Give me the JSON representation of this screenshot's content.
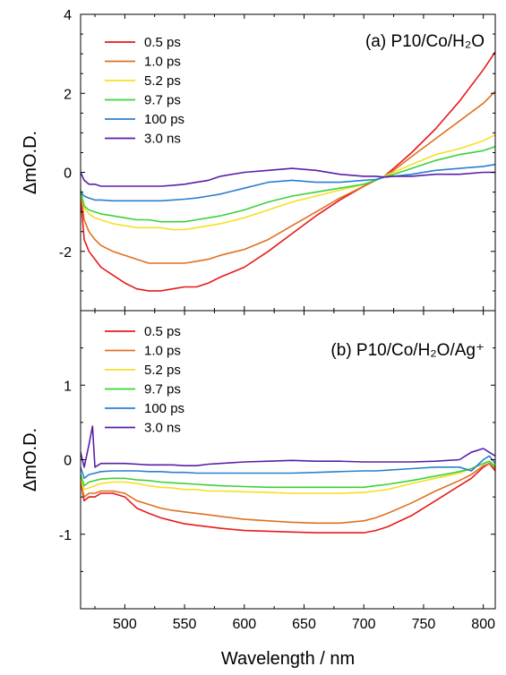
{
  "chart_data": [
    {
      "type": "line",
      "panel_label": "(a) P10/Co/H₂O",
      "ylabel": "ΔmO.D.",
      "xlabel": "",
      "xlim": [
        463,
        810
      ],
      "ylim": [
        -3.5,
        4
      ],
      "y_ticks": [
        -2,
        0,
        2,
        4
      ],
      "y_tick_labels": [
        "-2",
        "0",
        "2",
        "4"
      ],
      "x_ticks": [
        500,
        550,
        600,
        650,
        700,
        750,
        800
      ],
      "x_tick_labels": [],
      "legend_position": "top-left",
      "series": [
        {
          "name": "0.5 ps",
          "color": "#e8191c",
          "x": [
            463,
            466,
            470,
            475,
            480,
            490,
            500,
            510,
            520,
            530,
            540,
            550,
            560,
            570,
            580,
            600,
            620,
            640,
            660,
            680,
            700,
            710,
            717,
            725,
            740,
            760,
            780,
            800,
            810
          ],
          "y": [
            -0.6,
            -1.7,
            -2.0,
            -2.2,
            -2.4,
            -2.6,
            -2.8,
            -2.95,
            -3.0,
            -3.0,
            -2.95,
            -2.9,
            -2.9,
            -2.8,
            -2.65,
            -2.4,
            -2.0,
            -1.55,
            -1.1,
            -0.7,
            -0.35,
            -0.2,
            -0.1,
            0.1,
            0.5,
            1.1,
            1.8,
            2.6,
            3.05
          ]
        },
        {
          "name": "1.0 ps",
          "color": "#e07020",
          "x": [
            463,
            466,
            470,
            475,
            480,
            490,
            500,
            510,
            520,
            530,
            540,
            550,
            560,
            570,
            580,
            600,
            620,
            640,
            660,
            680,
            700,
            710,
            717,
            725,
            740,
            760,
            780,
            800,
            810
          ],
          "y": [
            -0.5,
            -1.2,
            -1.5,
            -1.7,
            -1.85,
            -2.0,
            -2.1,
            -2.2,
            -2.3,
            -2.3,
            -2.3,
            -2.3,
            -2.25,
            -2.2,
            -2.1,
            -1.95,
            -1.7,
            -1.35,
            -1.0,
            -0.65,
            -0.35,
            -0.2,
            -0.1,
            0.05,
            0.4,
            0.85,
            1.3,
            1.75,
            2.05
          ]
        },
        {
          "name": "5.2 ps",
          "color": "#f4e023",
          "x": [
            463,
            466,
            470,
            475,
            480,
            490,
            500,
            510,
            520,
            530,
            540,
            550,
            560,
            570,
            580,
            600,
            620,
            640,
            660,
            680,
            700,
            710,
            717,
            725,
            740,
            760,
            780,
            800,
            810
          ],
          "y": [
            -0.5,
            -0.9,
            -1.05,
            -1.15,
            -1.2,
            -1.3,
            -1.35,
            -1.4,
            -1.4,
            -1.4,
            -1.45,
            -1.45,
            -1.4,
            -1.35,
            -1.3,
            -1.15,
            -0.95,
            -0.75,
            -0.6,
            -0.45,
            -0.3,
            -0.2,
            -0.1,
            0.0,
            0.2,
            0.45,
            0.6,
            0.8,
            0.95
          ]
        },
        {
          "name": "9.7 ps",
          "color": "#3ad23a",
          "x": [
            463,
            466,
            470,
            475,
            480,
            490,
            500,
            510,
            520,
            530,
            540,
            550,
            560,
            570,
            580,
            600,
            620,
            640,
            660,
            680,
            700,
            710,
            717,
            725,
            740,
            760,
            780,
            800,
            810
          ],
          "y": [
            -0.45,
            -0.85,
            -0.95,
            -1.0,
            -1.05,
            -1.1,
            -1.15,
            -1.2,
            -1.2,
            -1.25,
            -1.25,
            -1.25,
            -1.2,
            -1.15,
            -1.1,
            -0.95,
            -0.75,
            -0.6,
            -0.5,
            -0.4,
            -0.3,
            -0.2,
            -0.12,
            -0.05,
            0.1,
            0.3,
            0.45,
            0.55,
            0.65
          ]
        },
        {
          "name": "100 ps",
          "color": "#2a7fcf",
          "x": [
            463,
            466,
            470,
            475,
            480,
            490,
            500,
            510,
            520,
            530,
            540,
            550,
            560,
            570,
            580,
            600,
            620,
            640,
            660,
            680,
            700,
            710,
            717,
            725,
            740,
            760,
            780,
            800,
            810
          ],
          "y": [
            -0.5,
            -0.6,
            -0.65,
            -0.7,
            -0.7,
            -0.72,
            -0.72,
            -0.72,
            -0.72,
            -0.72,
            -0.7,
            -0.68,
            -0.65,
            -0.6,
            -0.55,
            -0.4,
            -0.25,
            -0.2,
            -0.25,
            -0.25,
            -0.2,
            -0.18,
            -0.12,
            -0.1,
            -0.05,
            0.05,
            0.1,
            0.15,
            0.2
          ]
        },
        {
          "name": "3.0 ns",
          "color": "#5a1fa8",
          "x": [
            463,
            466,
            470,
            475,
            480,
            490,
            500,
            510,
            520,
            530,
            540,
            550,
            560,
            570,
            580,
            600,
            620,
            640,
            660,
            680,
            700,
            710,
            717,
            725,
            740,
            760,
            780,
            800,
            810
          ],
          "y": [
            0.0,
            -0.2,
            -0.3,
            -0.3,
            -0.35,
            -0.35,
            -0.35,
            -0.35,
            -0.35,
            -0.35,
            -0.33,
            -0.3,
            -0.25,
            -0.2,
            -0.1,
            0.0,
            0.05,
            0.1,
            0.05,
            -0.05,
            -0.1,
            -0.1,
            -0.12,
            -0.1,
            -0.1,
            -0.05,
            -0.05,
            0.0,
            0.0
          ]
        }
      ]
    },
    {
      "type": "line",
      "panel_label": "(b) P10/Co/H₂O/Ag⁺",
      "ylabel": "ΔmO.D.",
      "xlabel": "Wavelength / nm",
      "xlim": [
        463,
        810
      ],
      "ylim": [
        -2,
        2
      ],
      "y_ticks": [
        -1,
        0,
        1
      ],
      "y_tick_labels": [
        "-1",
        "0",
        "1"
      ],
      "x_ticks": [
        500,
        550,
        600,
        650,
        700,
        750,
        800
      ],
      "x_tick_labels": [
        "500",
        "550",
        "600",
        "650",
        "700",
        "750",
        "800"
      ],
      "legend_position": "top-left",
      "series": [
        {
          "name": "0.5 ps",
          "color": "#e8191c",
          "x": [
            463,
            466,
            470,
            475,
            480,
            490,
            500,
            510,
            520,
            530,
            540,
            550,
            560,
            570,
            580,
            600,
            620,
            640,
            660,
            680,
            700,
            710,
            720,
            740,
            760,
            780,
            790,
            800,
            805,
            810
          ],
          "y": [
            -0.3,
            -0.55,
            -0.5,
            -0.5,
            -0.45,
            -0.45,
            -0.5,
            -0.65,
            -0.72,
            -0.78,
            -0.82,
            -0.86,
            -0.88,
            -0.9,
            -0.92,
            -0.95,
            -0.96,
            -0.97,
            -0.98,
            -0.98,
            -0.98,
            -0.95,
            -0.9,
            -0.75,
            -0.55,
            -0.35,
            -0.25,
            -0.1,
            -0.05,
            -0.15
          ]
        },
        {
          "name": "1.0 ps",
          "color": "#e07020",
          "x": [
            463,
            466,
            470,
            475,
            480,
            490,
            500,
            510,
            520,
            530,
            540,
            550,
            560,
            570,
            580,
            600,
            620,
            640,
            660,
            680,
            700,
            710,
            720,
            740,
            760,
            780,
            790,
            800,
            805,
            810
          ],
          "y": [
            -0.3,
            -0.5,
            -0.45,
            -0.45,
            -0.42,
            -0.42,
            -0.45,
            -0.55,
            -0.6,
            -0.65,
            -0.68,
            -0.7,
            -0.72,
            -0.74,
            -0.76,
            -0.8,
            -0.82,
            -0.84,
            -0.85,
            -0.85,
            -0.82,
            -0.78,
            -0.72,
            -0.58,
            -0.42,
            -0.28,
            -0.2,
            -0.08,
            -0.05,
            -0.12
          ]
        },
        {
          "name": "5.2 ps",
          "color": "#f4e023",
          "x": [
            463,
            466,
            470,
            475,
            480,
            490,
            500,
            510,
            520,
            530,
            540,
            550,
            560,
            570,
            580,
            600,
            620,
            640,
            660,
            680,
            700,
            710,
            720,
            740,
            760,
            780,
            790,
            800,
            805,
            810
          ],
          "y": [
            -0.25,
            -0.4,
            -0.38,
            -0.35,
            -0.32,
            -0.3,
            -0.3,
            -0.32,
            -0.35,
            -0.37,
            -0.38,
            -0.4,
            -0.4,
            -0.42,
            -0.42,
            -0.43,
            -0.44,
            -0.45,
            -0.45,
            -0.45,
            -0.44,
            -0.42,
            -0.4,
            -0.32,
            -0.25,
            -0.18,
            -0.12,
            -0.05,
            -0.02,
            -0.08
          ]
        },
        {
          "name": "9.7 ps",
          "color": "#3ad23a",
          "x": [
            463,
            466,
            470,
            475,
            480,
            490,
            500,
            510,
            520,
            530,
            540,
            550,
            560,
            570,
            580,
            600,
            620,
            640,
            660,
            680,
            700,
            710,
            720,
            740,
            760,
            780,
            790,
            800,
            805,
            810
          ],
          "y": [
            -0.2,
            -0.35,
            -0.3,
            -0.28,
            -0.26,
            -0.25,
            -0.25,
            -0.27,
            -0.28,
            -0.3,
            -0.31,
            -0.32,
            -0.33,
            -0.34,
            -0.35,
            -0.36,
            -0.37,
            -0.37,
            -0.37,
            -0.37,
            -0.37,
            -0.35,
            -0.33,
            -0.28,
            -0.22,
            -0.16,
            -0.12,
            -0.05,
            -0.02,
            -0.1
          ]
        },
        {
          "name": "100 ps",
          "color": "#2a7fcf",
          "x": [
            463,
            466,
            470,
            475,
            480,
            490,
            500,
            510,
            520,
            530,
            540,
            550,
            560,
            570,
            580,
            600,
            620,
            640,
            660,
            680,
            700,
            710,
            720,
            740,
            760,
            780,
            790,
            800,
            805,
            810
          ],
          "y": [
            -0.1,
            -0.25,
            -0.2,
            -0.18,
            -0.16,
            -0.15,
            -0.15,
            -0.15,
            -0.16,
            -0.16,
            -0.17,
            -0.17,
            -0.18,
            -0.18,
            -0.18,
            -0.18,
            -0.18,
            -0.18,
            -0.17,
            -0.16,
            -0.15,
            -0.15,
            -0.14,
            -0.12,
            -0.1,
            -0.1,
            -0.15,
            0.0,
            0.05,
            -0.05
          ]
        },
        {
          "name": "3.0 ns",
          "color": "#5a1fa8",
          "x": [
            463,
            466,
            470,
            473,
            475,
            480,
            490,
            500,
            510,
            520,
            530,
            540,
            550,
            560,
            570,
            580,
            600,
            620,
            640,
            660,
            680,
            700,
            710,
            720,
            740,
            760,
            780,
            790,
            800,
            805,
            810
          ],
          "y": [
            0.1,
            -0.1,
            0.2,
            0.45,
            -0.1,
            -0.05,
            -0.05,
            -0.05,
            -0.06,
            -0.07,
            -0.07,
            -0.07,
            -0.08,
            -0.08,
            -0.06,
            -0.05,
            -0.03,
            -0.02,
            -0.01,
            -0.02,
            -0.02,
            -0.03,
            -0.03,
            -0.03,
            -0.03,
            -0.02,
            0.0,
            0.1,
            0.15,
            0.1,
            0.05
          ]
        }
      ]
    }
  ]
}
